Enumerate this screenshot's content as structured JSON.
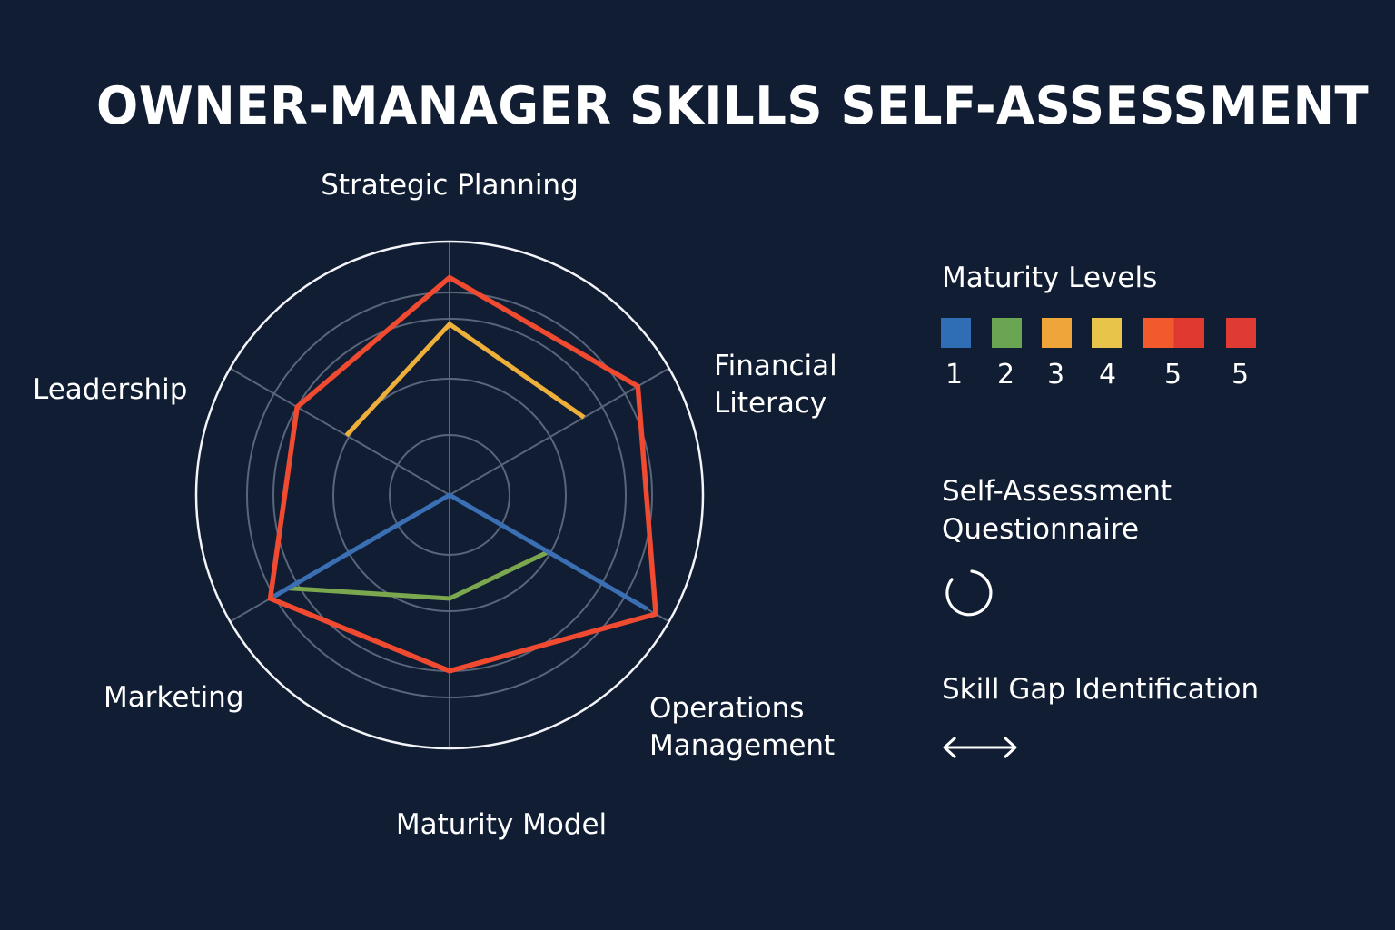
{
  "title": "OWNER-MANAGER SKILLS SELF-ASSESSMENT",
  "chart_data": {
    "type": "radar",
    "axes": [
      "Strategic Planning",
      "Financial Literacy",
      "Operations Management",
      "Maturity Model",
      "Marketing",
      "Leadership"
    ],
    "rlim": [
      0,
      5
    ],
    "rings": 4,
    "series": [
      {
        "color": "#f04a30",
        "values": [
          4.2,
          4.2,
          4.6,
          3.4,
          4.0,
          3.4
        ]
      },
      {
        "color": "#eeb03a",
        "values": [
          3.3,
          3.0,
          null,
          null,
          null,
          2.3
        ]
      },
      {
        "color": "#7ba84e",
        "values": [
          null,
          null,
          2.2,
          2.0,
          3.6,
          null
        ]
      },
      {
        "color": "#3b6fb4",
        "values": [
          0.0,
          0.0,
          4.4,
          null,
          3.9,
          0.0
        ]
      }
    ]
  },
  "legend": {
    "heading": "Maturity Levels",
    "items": [
      {
        "label": "1",
        "color": "#2f6db5"
      },
      {
        "label": "2",
        "color": "#6aa652"
      },
      {
        "label": "3",
        "color": "#f0a53a"
      },
      {
        "label": "4",
        "color": "#e8c44a"
      },
      {
        "label": "5",
        "color": "#f25a2e",
        "color2": "#e0392f"
      },
      {
        "label": "5",
        "color": "#df3b32"
      }
    ]
  },
  "sections": {
    "questionnaire": {
      "line1": "Self-Assessment",
      "line2": "Questionnaire",
      "icon": "progress-ring-icon"
    },
    "skill_gap": {
      "label": "Skill Gap Identification",
      "icon": "double-arrow-icon"
    }
  }
}
